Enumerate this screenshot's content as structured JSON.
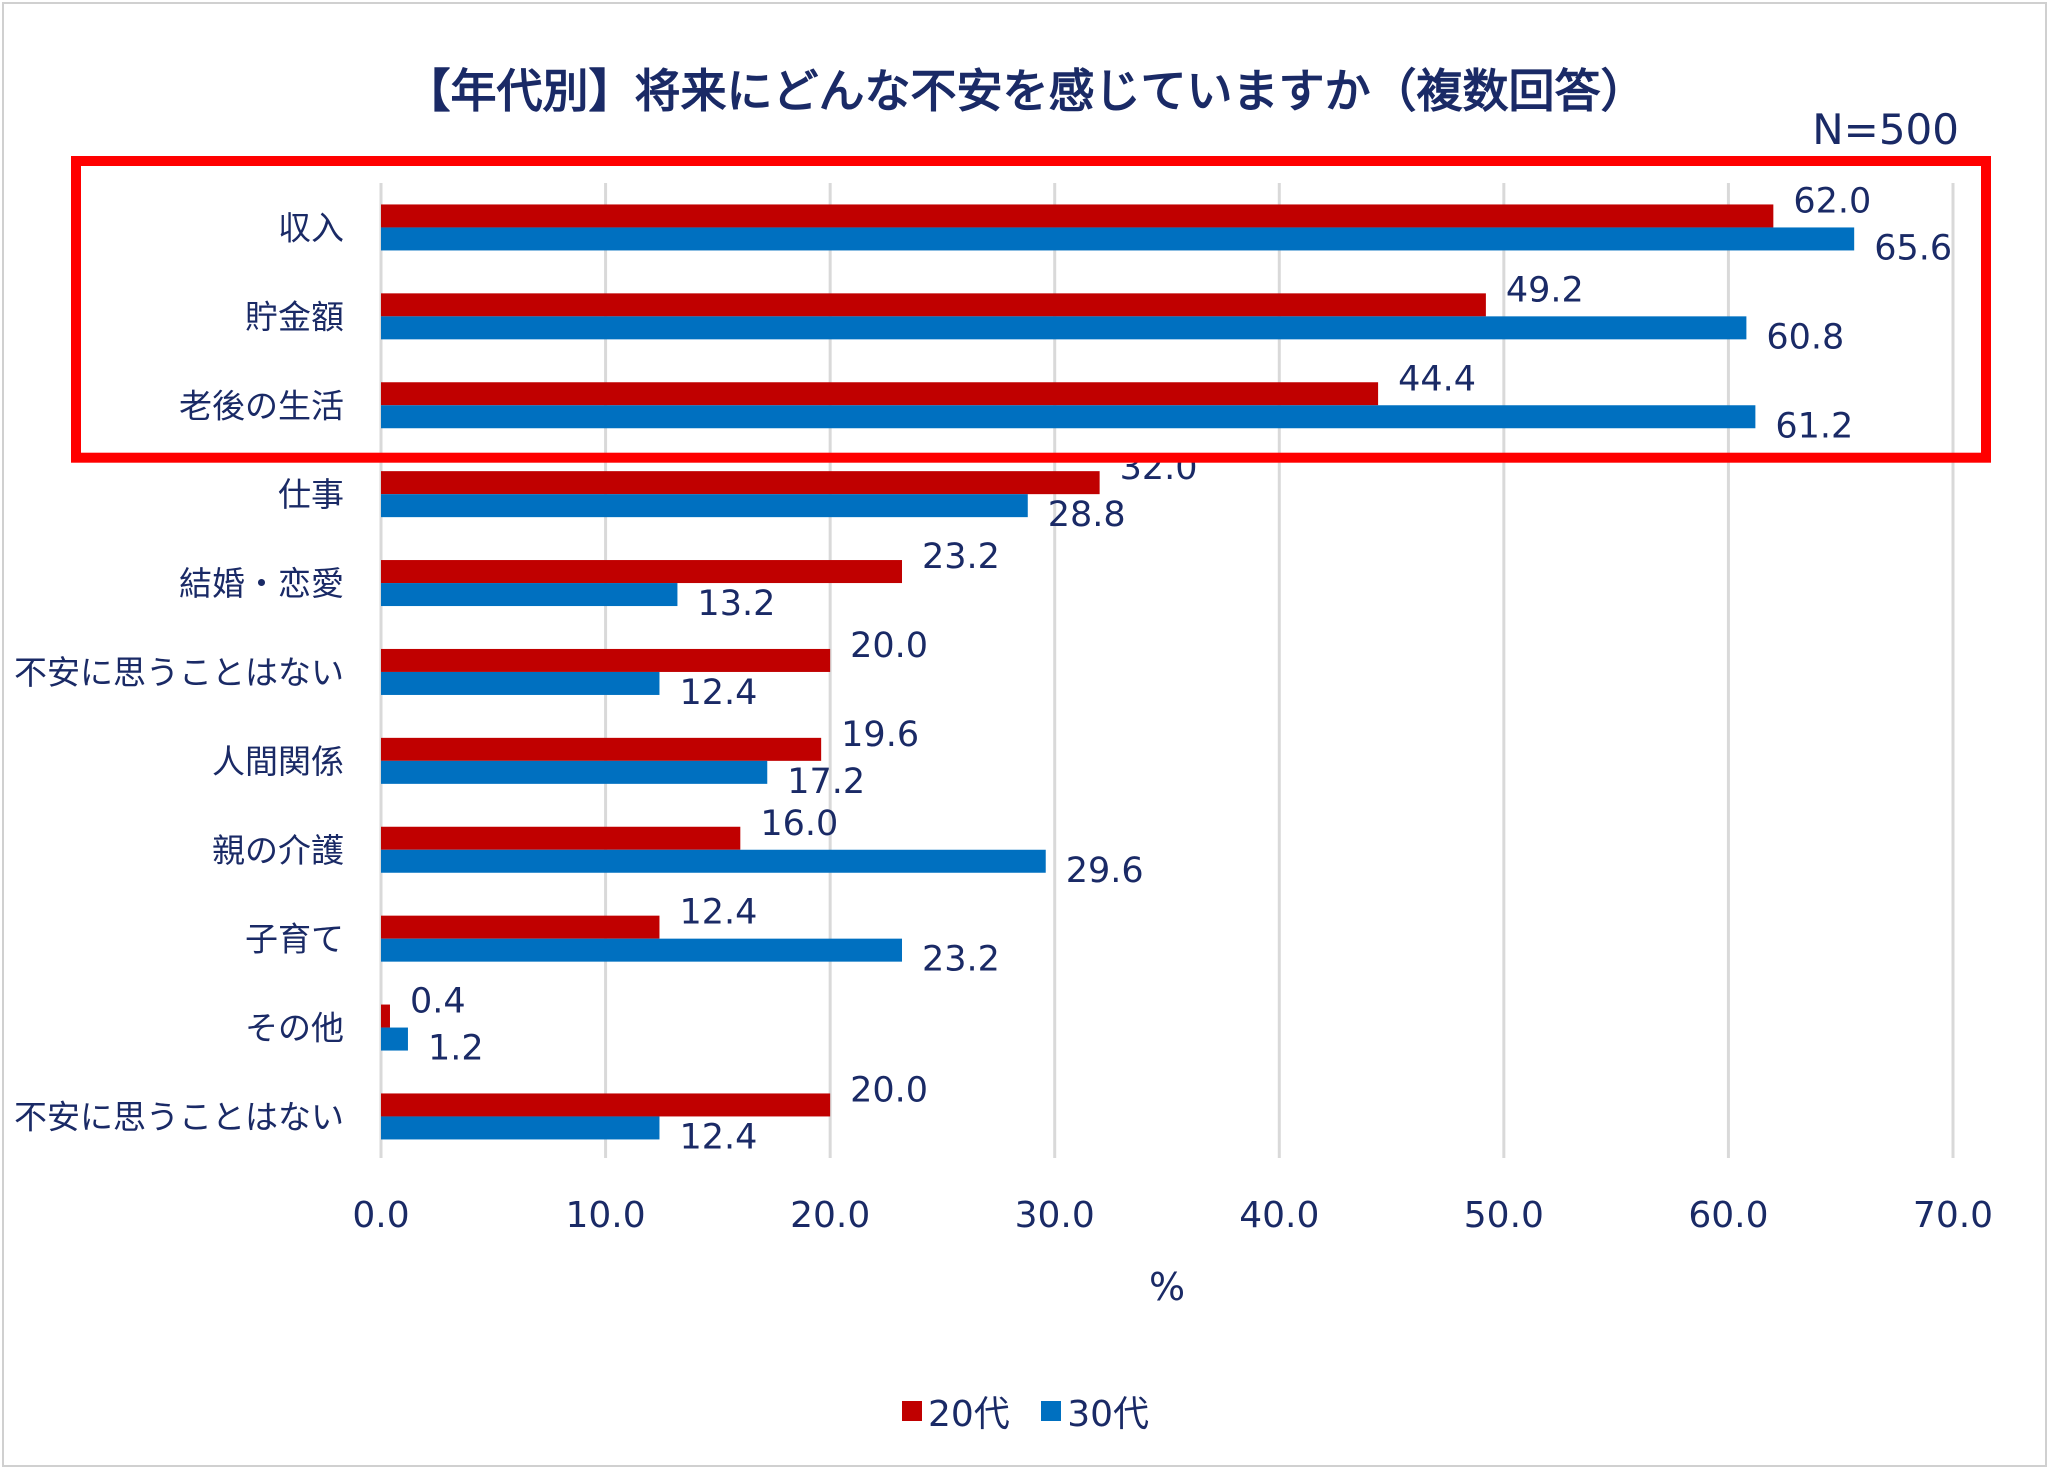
{
  "chart_data": {
    "type": "bar",
    "orientation": "horizontal",
    "title": "【年代別】将来にどんな不安を感じていますか（複数回答）",
    "note": "N=500",
    "categories": [
      "収入",
      "貯金額",
      "老後の生活",
      "仕事",
      "結婚・恋愛",
      "不安に思うことはない",
      "人間関係",
      "親の介護",
      "子育て",
      "その他",
      "不安に思うことはない"
    ],
    "series": [
      {
        "name": "20代",
        "color": "#c00000",
        "values": [
          62.0,
          49.2,
          44.4,
          32.0,
          23.2,
          20.0,
          19.6,
          16.0,
          12.4,
          0.4,
          20.0
        ]
      },
      {
        "name": "30代",
        "color": "#0070c0",
        "values": [
          65.6,
          60.8,
          61.2,
          28.8,
          13.2,
          12.4,
          17.2,
          29.6,
          23.2,
          1.2,
          12.4
        ]
      }
    ],
    "xlabel": "%",
    "xlim": [
      0,
      70
    ],
    "xticks": [
      "0.0",
      "10.0",
      "20.0",
      "30.0",
      "40.0",
      "50.0",
      "60.0",
      "70.0"
    ],
    "grid": true,
    "legend_position": "bottom",
    "highlight": {
      "categories": [
        "収入",
        "貯金額",
        "老後の生活"
      ],
      "color": "#ff0000"
    }
  }
}
